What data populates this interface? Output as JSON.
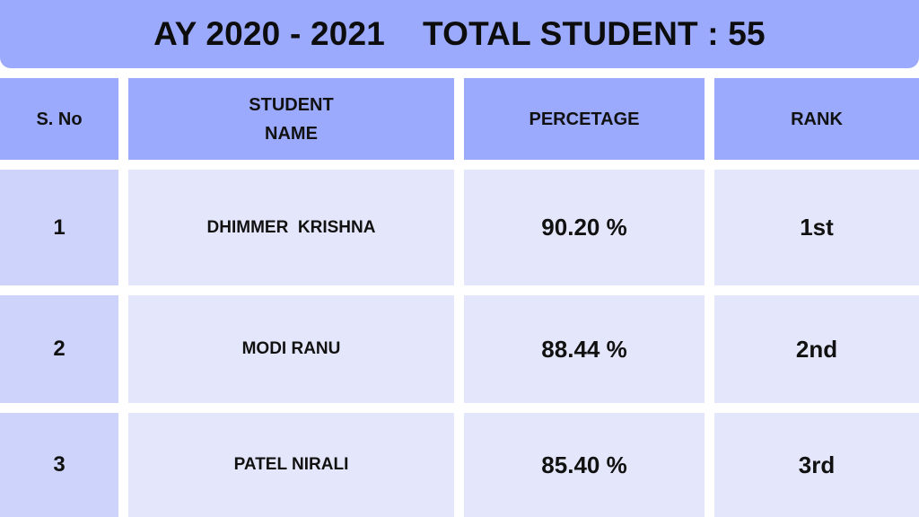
{
  "header": {
    "title": "AY 2020 - 2021    TOTAL STUDENT : 55"
  },
  "table": {
    "columns": [
      "S. No",
      "STUDENT\nNAME",
      "PERCETAGE",
      "RANK"
    ],
    "rows": [
      {
        "sno": "1",
        "name": "DHIMMER  KRISHNA",
        "percentage": "90.20 %",
        "rank": "1st"
      },
      {
        "sno": "2",
        "name": "MODI RANU",
        "percentage": "88.44 %",
        "rank": "2nd"
      },
      {
        "sno": "3",
        "name": "PATEL NIRALI",
        "percentage": "85.40 %",
        "rank": "3rd"
      }
    ]
  },
  "colors": {
    "header_bg": "#9baafd",
    "first_col_bg": "#cdd3fb",
    "cell_bg": "#e4e7fb"
  }
}
